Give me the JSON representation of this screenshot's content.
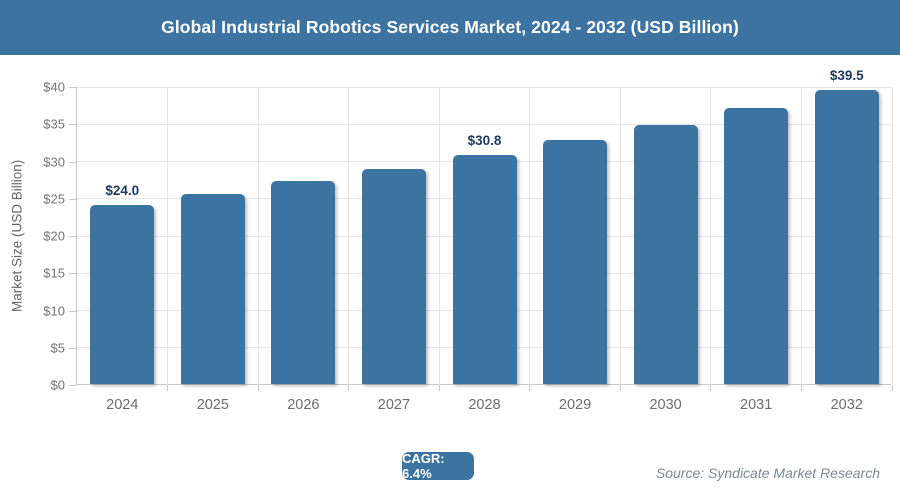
{
  "header": {
    "title": "Global Industrial Robotics Services Market, 2024 - 2032 (USD Billion)",
    "background_color": "#3d73a1",
    "text_color": "#ffffff"
  },
  "chart_data": {
    "type": "bar",
    "title": "Global Industrial Robotics Services Market, 2024 - 2032 (USD Billion)",
    "categories": [
      "2024",
      "2025",
      "2026",
      "2027",
      "2028",
      "2029",
      "2030",
      "2031",
      "2032"
    ],
    "values": [
      24.0,
      25.5,
      27.2,
      28.9,
      30.8,
      32.7,
      34.8,
      37.1,
      39.5
    ],
    "bar_labels": [
      "$24.0",
      "",
      "",
      "",
      "$30.8",
      "",
      "",
      "",
      "$39.5"
    ],
    "xlabel": "",
    "ylabel": "Market Size (USD Billion)",
    "ylim": [
      0,
      40
    ],
    "ytick_step": 5,
    "ytick_labels": [
      "$0",
      "$5",
      "$10",
      "$15",
      "$20",
      "$25",
      "$30",
      "$35",
      "$40"
    ],
    "grid": true,
    "legend": false,
    "bar_color": "#3d73a1",
    "data_label_color": "#1e3a5f",
    "gridline_color": "#e6e6e6",
    "axis_color": "#c9c9c9"
  },
  "footer": {
    "cagr_label": "CAGR: 6.4%",
    "source": "Source: Syndicate Market Research"
  }
}
